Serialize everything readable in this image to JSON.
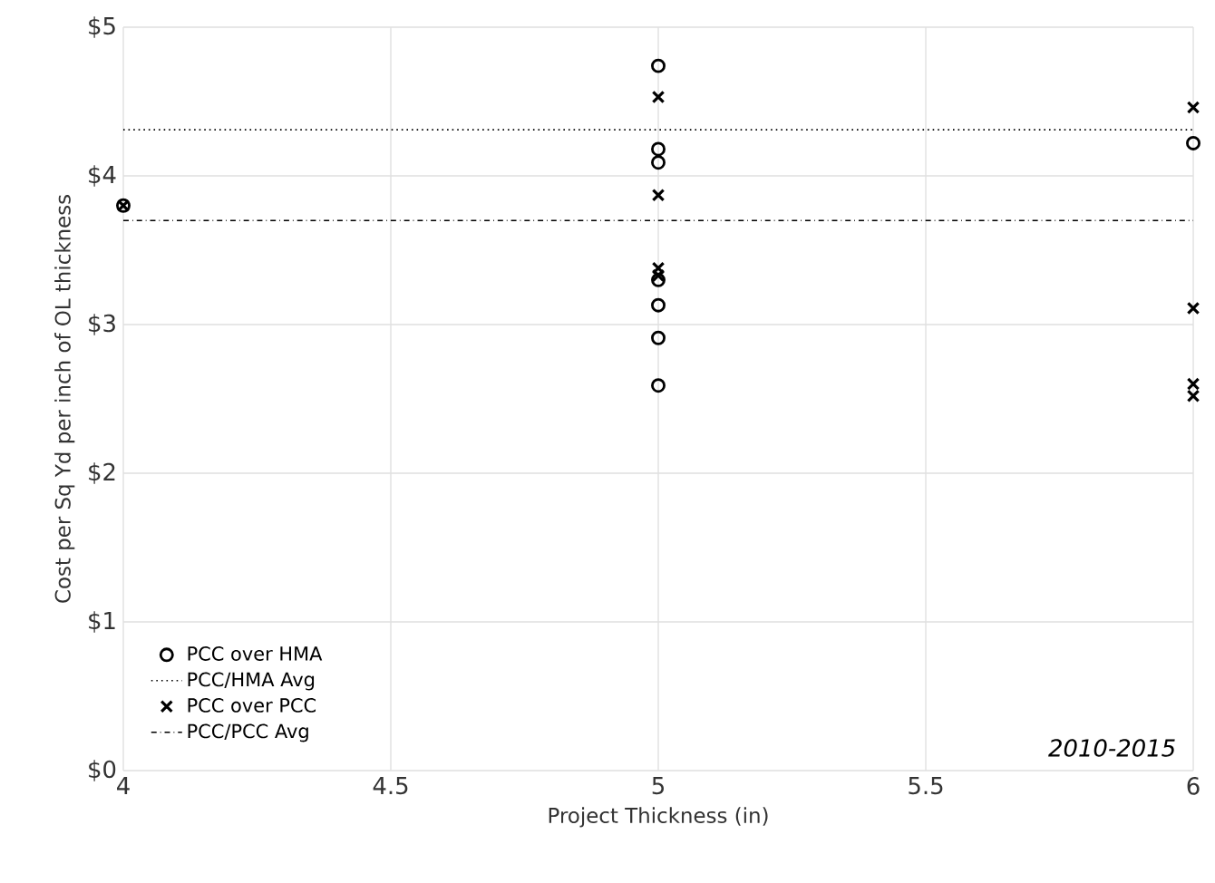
{
  "chart_data": {
    "type": "scatter",
    "xlabel": "Project Thickness (in)",
    "ylabel": "Cost per Sq Yd per inch of OL thickness",
    "xlim": [
      4,
      6
    ],
    "xticks": [
      4,
      4.5,
      5,
      5.5,
      6
    ],
    "ylim": [
      0,
      5
    ],
    "yticks": [
      {
        "value": 0,
        "label": "$0"
      },
      {
        "value": 1,
        "label": "$1"
      },
      {
        "value": 2,
        "label": "$2"
      },
      {
        "value": 3,
        "label": "$3"
      },
      {
        "value": 4,
        "label": "$4"
      },
      {
        "value": 5,
        "label": "$5"
      }
    ],
    "grid": true,
    "legend": "bottom left",
    "series": [
      {
        "name": "PCC over HMA",
        "color": "#000000",
        "marker": "circle",
        "x": [
          4,
          5,
          5,
          5,
          5,
          5,
          5,
          5,
          6
        ],
        "values": [
          3.8,
          4.74,
          4.18,
          4.09,
          3.3,
          3.13,
          2.91,
          2.59,
          4.22
        ]
      },
      {
        "name": "PCC/HMA Avg",
        "type": "line",
        "color": "#000000",
        "marker": "none",
        "line_style": "dotted",
        "x": [
          4,
          6
        ],
        "values": [
          4.31,
          4.31
        ]
      },
      {
        "name": "PCC over PCC",
        "color": "#000000",
        "marker": "cross",
        "x": [
          4,
          5,
          5,
          5,
          5,
          6,
          6,
          6,
          6
        ],
        "values": [
          3.8,
          4.53,
          3.87,
          3.38,
          3.33,
          4.46,
          3.11,
          2.6,
          2.52
        ]
      },
      {
        "name": "PCC/PCC Avg",
        "type": "line",
        "color": "#000000",
        "marker": "none",
        "line_style": "dashdot",
        "x": [
          4,
          6
        ],
        "values": [
          3.7,
          3.7
        ]
      }
    ],
    "annotations": [
      "*2010-2015*"
    ]
  }
}
